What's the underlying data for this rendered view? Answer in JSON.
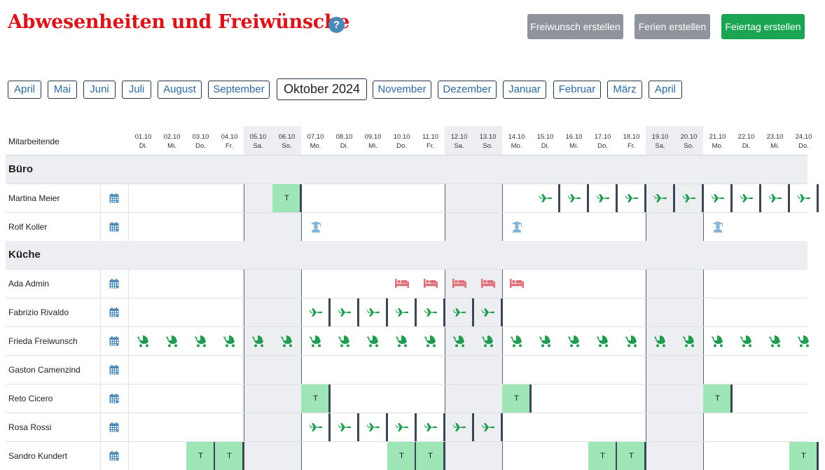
{
  "header": {
    "title": "Abwesenheiten und Freiwünsche",
    "help_label": "?",
    "buttons": {
      "freiwunsch": "Freiwunsch erstellen",
      "ferien": "Ferien erstellen",
      "feiertag": "Feiertag erstellen"
    }
  },
  "months": {
    "items": [
      "April",
      "Mai",
      "Juni",
      "Juli",
      "August",
      "September",
      "Oktober 2024",
      "November",
      "Dezember",
      "Januar",
      "Februar",
      "März",
      "April"
    ],
    "selected": "Oktober 2024"
  },
  "grid": {
    "header_label": "Mitarbeitende",
    "days": [
      {
        "date": "01.10",
        "wd": "Di."
      },
      {
        "date": "02.10",
        "wd": "Mi."
      },
      {
        "date": "03.10",
        "wd": "Do."
      },
      {
        "date": "04.10",
        "wd": "Fr."
      },
      {
        "date": "05.10",
        "wd": "Sa."
      },
      {
        "date": "06.10",
        "wd": "So."
      },
      {
        "date": "07.10",
        "wd": "Mo."
      },
      {
        "date": "08.10",
        "wd": "Di."
      },
      {
        "date": "09.10",
        "wd": "Mi."
      },
      {
        "date": "10.10",
        "wd": "Do."
      },
      {
        "date": "11.10",
        "wd": "Fr."
      },
      {
        "date": "12.10",
        "wd": "Sa."
      },
      {
        "date": "13.10",
        "wd": "So."
      },
      {
        "date": "14.10",
        "wd": "Mo."
      },
      {
        "date": "15.10",
        "wd": "Di."
      },
      {
        "date": "16.10",
        "wd": "Mi."
      },
      {
        "date": "17.10",
        "wd": "Do."
      },
      {
        "date": "18.10",
        "wd": "Fr."
      },
      {
        "date": "19.10",
        "wd": "Sa."
      },
      {
        "date": "20.10",
        "wd": "So."
      },
      {
        "date": "21.10",
        "wd": "Mo."
      },
      {
        "date": "22.10",
        "wd": "Di."
      },
      {
        "date": "23.10",
        "wd": "Mi."
      },
      {
        "date": "24.10",
        "wd": "Do."
      }
    ],
    "groups": [
      {
        "name": "Büro",
        "employees": [
          {
            "name": "Martina Meier",
            "t": [
              5
            ],
            "icons": {
              "plane": [
                14,
                15,
                16,
                17,
                18,
                19,
                20,
                21,
                22,
                23
              ]
            }
          },
          {
            "name": "Rolf Koller",
            "t": [],
            "icons": {
              "school": [
                6,
                13,
                20
              ]
            }
          }
        ]
      },
      {
        "name": "Küche",
        "employees": [
          {
            "name": "Ada Admin",
            "t": [],
            "icons": {
              "bed": [
                9,
                10,
                11,
                12,
                13
              ]
            }
          },
          {
            "name": "Fabrizio Rivaldo",
            "t": [],
            "icons": {
              "plane": [
                6,
                7,
                8,
                9,
                10,
                11,
                12
              ]
            }
          },
          {
            "name": "Frieda Freiwunsch",
            "t": [],
            "icons": {
              "stroller": [
                0,
                1,
                2,
                3,
                4,
                5,
                6,
                7,
                8,
                9,
                10,
                11,
                12,
                13,
                14,
                15,
                16,
                17,
                18,
                19,
                20,
                21,
                22,
                23
              ]
            }
          },
          {
            "name": "Gaston Camenzind",
            "t": [],
            "icons": {}
          },
          {
            "name": "Reto Cicero",
            "t": [
              6,
              13,
              20
            ],
            "icons": {}
          },
          {
            "name": "Rosa Rossi",
            "t": [],
            "icons": {
              "plane": [
                6,
                7,
                8,
                9,
                10,
                11,
                12
              ]
            }
          },
          {
            "name": "Sandro Kundert",
            "t": [
              2,
              3,
              9,
              10,
              16,
              17,
              23
            ],
            "icons": {}
          }
        ]
      }
    ],
    "t_label": "T",
    "colors": {
      "plane": "#1e9c4f",
      "bed": "#e0707a",
      "school": "#86b3d8",
      "stroller": "#1e9c4f",
      "calendar": "#4a88b8",
      "t_block": "#9ee6b5"
    }
  }
}
